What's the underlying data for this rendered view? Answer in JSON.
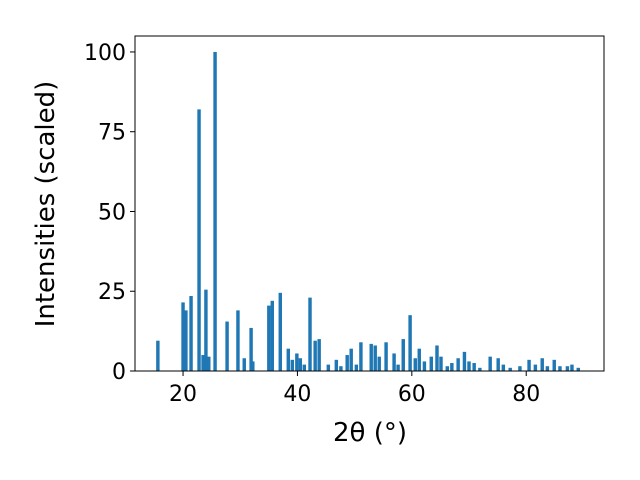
{
  "chart_data": {
    "type": "bar",
    "xlabel": "2θ (°)",
    "ylabel": "Intensities (scaled)",
    "color": "#1f77b4",
    "x": [
      15.6,
      20.0,
      20.5,
      21.4,
      22.8,
      23.5,
      24.0,
      24.5,
      25.6,
      27.7,
      29.6,
      30.7,
      31.9,
      32.2,
      35.0,
      35.6,
      37.0,
      38.4,
      39.1,
      39.9,
      40.5,
      41.2,
      42.2,
      43.1,
      43.8,
      45.4,
      46.8,
      47.6,
      48.7,
      49.4,
      50.3,
      51.1,
      52.9,
      53.6,
      54.3,
      55.5,
      56.9,
      57.6,
      58.5,
      59.7,
      60.6,
      61.3,
      62.2,
      63.4,
      64.4,
      65.1,
      66.2,
      67.0,
      68.1,
      69.2,
      70.0,
      70.9,
      71.9,
      73.7,
      75.1,
      76.0,
      77.2,
      78.9,
      80.5,
      81.6,
      82.8,
      83.7,
      84.9,
      85.9,
      87.2,
      88.0,
      89.1
    ],
    "values": [
      9.5,
      21.5,
      19,
      23.5,
      82,
      5,
      25.5,
      4.5,
      100,
      15.5,
      19,
      4,
      13.5,
      3,
      20.5,
      22,
      24.5,
      7,
      3.5,
      5.5,
      4,
      2,
      23,
      9.5,
      10,
      2,
      3.5,
      1.5,
      5,
      7,
      2,
      9,
      8.5,
      8,
      4.5,
      9,
      5.5,
      2,
      10,
      17.5,
      4,
      7,
      3,
      4.5,
      8,
      4.5,
      1.5,
      2.5,
      4,
      6,
      3,
      2.5,
      1,
      4.5,
      4,
      2,
      1,
      1.5,
      3.5,
      2,
      4,
      1.5,
      3.5,
      1.5,
      1.5,
      2,
      1
    ],
    "xlim": [
      11.6,
      93.6
    ],
    "ylim": [
      0,
      105
    ],
    "xticks": [
      20,
      40,
      60,
      80
    ],
    "yticks": [
      0,
      25,
      50,
      75,
      100
    ]
  }
}
